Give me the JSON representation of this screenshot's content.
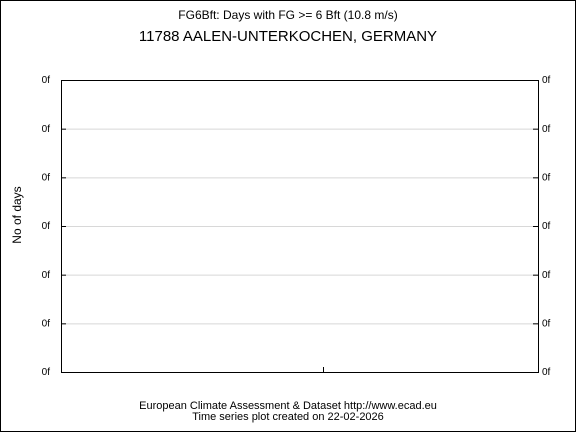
{
  "chart_data": {
    "type": "line",
    "title": "FG6Bft: Days with FG >= 6 Bft (10.8 m/s)",
    "subtitle": "11788 AALEN-UNTERKOCHEN, GERMANY",
    "ylabel": "No of days",
    "ytick_labels": [
      "0f",
      "0f",
      "0f",
      "0f",
      "0f",
      "0f",
      "0f"
    ],
    "grid": true,
    "series": [],
    "footer": [
      "European Climate Assessment & Dataset  http://www.ecad.eu",
      "Time series plot created on 22-02-2026"
    ]
  }
}
